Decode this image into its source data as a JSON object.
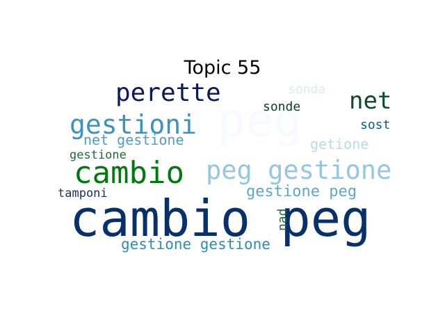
{
  "title": "Topic 55",
  "words": [
    {
      "text": "cambio peg",
      "color": "#08306b"
    },
    {
      "text": "peg",
      "color": "#f7fbff"
    },
    {
      "text": "cambio",
      "color": "#007a0e"
    },
    {
      "text": "peg gestione",
      "color": "#95c7df"
    },
    {
      "text": "perette",
      "color": "#0b1a5e"
    },
    {
      "text": "gestioni",
      "color": "#3a94bf"
    },
    {
      "text": "net",
      "color": "#0a4a2e"
    },
    {
      "text": "gestione peg",
      "color": "#5aa9d0"
    },
    {
      "text": "net gestione",
      "color": "#4e9ec8"
    },
    {
      "text": "gestione gestione",
      "color": "#2a8cbf"
    },
    {
      "text": "getione",
      "color": "#b8dbea"
    },
    {
      "text": "gestione",
      "color": "#1e6b3a"
    },
    {
      "text": "tamponi",
      "color": "#1b2f77"
    },
    {
      "text": "sonde",
      "color": "#0c3b2a"
    },
    {
      "text": "sost",
      "color": "#0f5a86"
    },
    {
      "text": "sonda",
      "color": "#dbecf4"
    },
    {
      "text": "nad",
      "color": "#1e6b3a"
    }
  ]
}
